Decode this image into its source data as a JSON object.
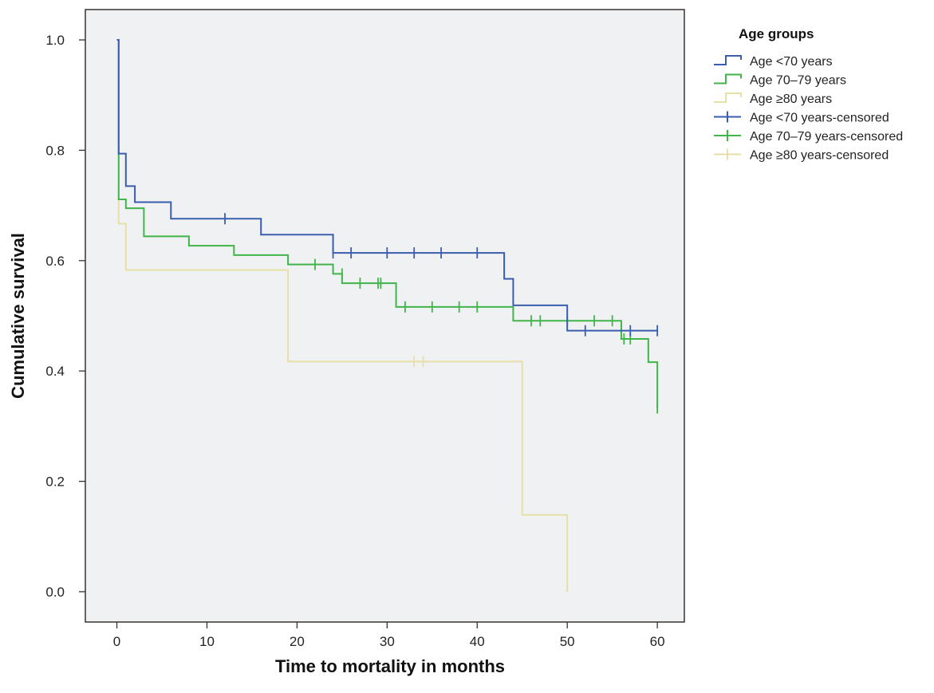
{
  "chart_data": {
    "type": "line",
    "subtype": "kaplan-meier-step",
    "xlabel": "Time to mortality in months",
    "ylabel": "Cumulative survival",
    "xlim": [
      -3.5,
      63
    ],
    "ylim": [
      -0.055,
      1.055
    ],
    "xticks": [
      0,
      10,
      20,
      30,
      40,
      50,
      60
    ],
    "yticks": [
      0.0,
      0.2,
      0.4,
      0.6,
      0.8,
      1.0
    ],
    "ytick_labels": [
      "0.0",
      "0.2",
      "0.4",
      "0.6",
      "0.8",
      "1.0"
    ],
    "grid": false,
    "plot_background": "#f0f1f3",
    "legend": {
      "title": "Age groups",
      "placement": "right",
      "entries": [
        {
          "label": "Age <70 years",
          "series": 0,
          "kind": "line"
        },
        {
          "label": "Age 70–79 years",
          "series": 1,
          "kind": "line"
        },
        {
          "label": "Age ≥80 years",
          "series": 2,
          "kind": "line"
        },
        {
          "label": "Age <70 years-censored",
          "series": 0,
          "kind": "censor"
        },
        {
          "label": "Age 70–79 years-censored",
          "series": 1,
          "kind": "censor"
        },
        {
          "label": "Age ≥80 years-censored",
          "series": 2,
          "kind": "censor"
        }
      ]
    },
    "series": [
      {
        "name": "Age <70 years",
        "color": "#3a5dae",
        "steps": [
          [
            0,
            1.0
          ],
          [
            0.2,
            0.794
          ],
          [
            1,
            0.735
          ],
          [
            2,
            0.706
          ],
          [
            6,
            0.676
          ],
          [
            16,
            0.647
          ],
          [
            24,
            0.614
          ],
          [
            43,
            0.567
          ],
          [
            44,
            0.519
          ],
          [
            50,
            0.473
          ],
          [
            60,
            0.473
          ]
        ],
        "censored": [
          [
            12,
            0.676
          ],
          [
            24,
            0.614
          ],
          [
            26,
            0.614
          ],
          [
            30,
            0.614
          ],
          [
            33,
            0.614
          ],
          [
            36,
            0.614
          ],
          [
            40,
            0.614
          ],
          [
            52,
            0.473
          ],
          [
            57,
            0.473
          ],
          [
            60,
            0.473
          ]
        ]
      },
      {
        "name": "Age 70–79 years",
        "color": "#3fb54a",
        "steps": [
          [
            0,
            1.0
          ],
          [
            0.2,
            0.711
          ],
          [
            1,
            0.695
          ],
          [
            3,
            0.644
          ],
          [
            8,
            0.627
          ],
          [
            13,
            0.61
          ],
          [
            19,
            0.593
          ],
          [
            24,
            0.576
          ],
          [
            25,
            0.559
          ],
          [
            31,
            0.516
          ],
          [
            44,
            0.491
          ],
          [
            56,
            0.458
          ],
          [
            59,
            0.416
          ],
          [
            60,
            0.333
          ]
        ],
        "censored": [
          [
            22,
            0.593
          ],
          [
            25,
            0.576
          ],
          [
            27,
            0.559
          ],
          [
            29,
            0.559
          ],
          [
            29.3,
            0.559
          ],
          [
            32,
            0.516
          ],
          [
            35,
            0.516
          ],
          [
            38,
            0.516
          ],
          [
            40,
            0.516
          ],
          [
            46,
            0.491
          ],
          [
            47,
            0.491
          ],
          [
            50,
            0.491
          ],
          [
            53,
            0.491
          ],
          [
            55,
            0.491
          ],
          [
            56.3,
            0.458
          ],
          [
            57,
            0.458
          ],
          [
            60,
            0.333
          ]
        ]
      },
      {
        "name": "Age ≥80 years",
        "color": "#e6dfa8",
        "steps": [
          [
            0,
            1.0
          ],
          [
            0.2,
            0.667
          ],
          [
            1,
            0.583
          ],
          [
            19,
            0.417
          ],
          [
            45,
            0.139
          ],
          [
            50,
            0.0
          ]
        ],
        "censored": [
          [
            33,
            0.417
          ],
          [
            34,
            0.417
          ]
        ]
      }
    ]
  }
}
